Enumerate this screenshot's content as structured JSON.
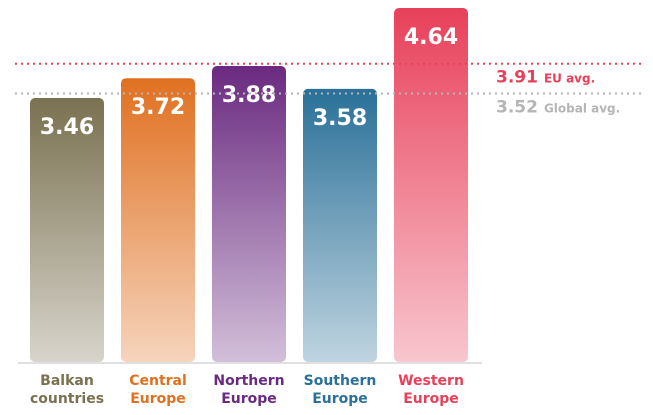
{
  "chart_data": {
    "type": "bar",
    "categories": [
      "Balkan countries",
      "Central Europe",
      "Northern Europe",
      "Southern Europe",
      "Western Europe"
    ],
    "values": [
      3.46,
      3.72,
      3.88,
      3.58,
      4.64
    ],
    "colors": [
      "#7a7150",
      "#e07020",
      "#6a2a80",
      "#2a7098",
      "#e8405a"
    ],
    "ylim": [
      0,
      4.745
    ],
    "reference_lines": [
      {
        "value": 3.91,
        "label": "EU avg.",
        "color": "#e8405a"
      },
      {
        "value": 3.52,
        "label": "Global avg.",
        "color": "#b5b5b5"
      }
    ]
  }
}
